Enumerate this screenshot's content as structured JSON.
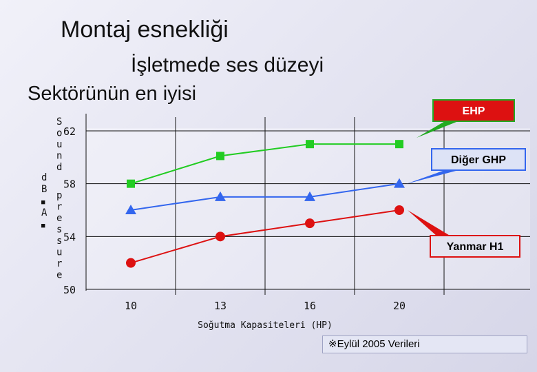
{
  "slide": {
    "title_line1": "Montaj esnekliği",
    "title_line2": "İşletmede ses düzeyi",
    "title_line3": "Sektörünün en iyisi",
    "footnote": "※Eylül 2005 Verileri"
  },
  "chart_data": {
    "type": "line",
    "xlabel": "Soğutma Kapasiteleri (HP)",
    "ylabel": "Sound pressure",
    "ylabel_unit": "dB A",
    "x": [
      10,
      13,
      16,
      20
    ],
    "x_ticks": [
      "10",
      "13",
      "16",
      "20"
    ],
    "y_ticks": [
      "62",
      "58",
      "54",
      "50"
    ],
    "ylim": [
      50,
      62
    ],
    "grid": true,
    "series": [
      {
        "name": "EHP",
        "values": [
          58,
          60.1,
          61,
          61
        ],
        "color": "#22cc22",
        "marker": "square"
      },
      {
        "name": "Diğer GHP",
        "values": [
          56,
          57,
          57,
          58
        ],
        "color": "#3366ee",
        "marker": "triangle"
      },
      {
        "name": "Yanmar H1",
        "values": [
          52,
          54,
          55,
          56
        ],
        "color": "#dd1111",
        "marker": "circle"
      }
    ]
  }
}
